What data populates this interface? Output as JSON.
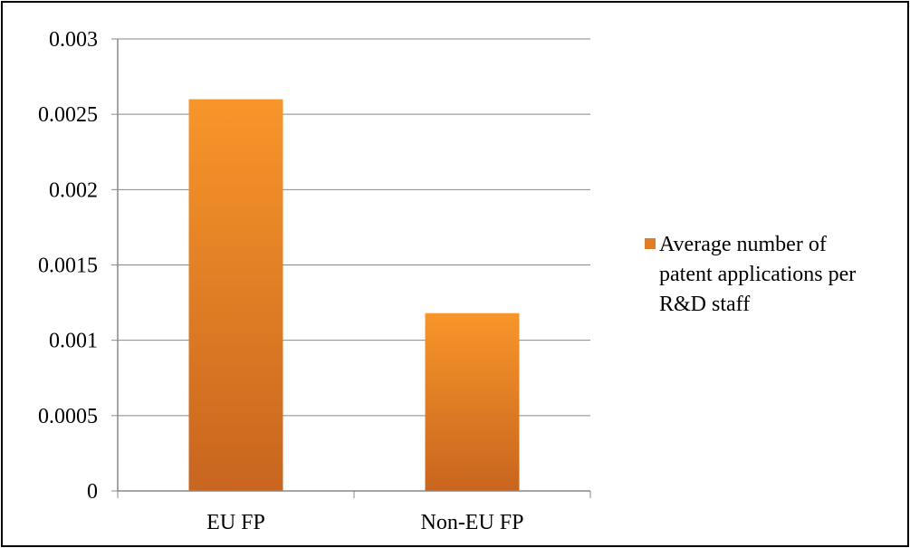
{
  "chart_data": {
    "type": "bar",
    "categories": [
      "EU FP",
      "Non-EU FP"
    ],
    "series": [
      {
        "name": "Average number of patent applications per R&D staff",
        "values": [
          0.0026,
          0.00118
        ]
      }
    ],
    "ylim": [
      0,
      0.003
    ],
    "yticks": [
      "0",
      "0.0005",
      "0.001",
      "0.0015",
      "0.002",
      "0.0025",
      "0.003"
    ],
    "grid": true,
    "legend_position": "right",
    "legend_lines": [
      "Average number of",
      "patent applications per",
      "R&D staff"
    ],
    "colors": {
      "bar_top": "#f7962a",
      "bar_bottom": "#c8651f",
      "legend_swatch": "#e07e26",
      "gridline": "#888888",
      "frame": "#000000"
    }
  }
}
